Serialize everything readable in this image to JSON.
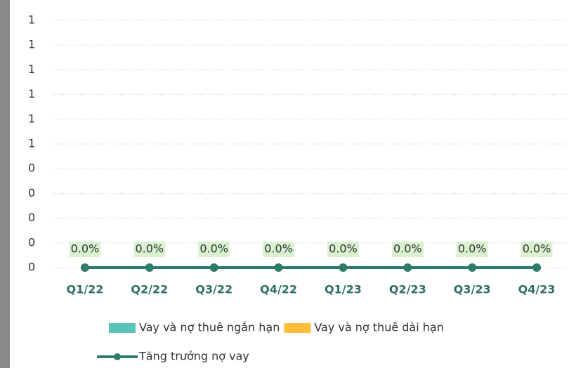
{
  "chart_data": {
    "type": "bar",
    "categories": [
      "Q1/22",
      "Q2/22",
      "Q3/22",
      "Q4/22",
      "Q1/23",
      "Q2/23",
      "Q3/23",
      "Q4/23"
    ],
    "series": [
      {
        "name": "Vay và nợ thuê ngắn hạn",
        "color": "#5cc3b7",
        "values": [
          0,
          0,
          0,
          0,
          0,
          0,
          0,
          0
        ]
      },
      {
        "name": "Vay và nợ thuê dài hạn",
        "color": "#fdbf3a",
        "values": [
          0,
          0,
          0,
          0,
          0,
          0,
          0,
          0
        ]
      },
      {
        "name": "Tăng trưởng nợ vay",
        "type": "line",
        "color": "#2e7b6b",
        "values": [
          0,
          0,
          0,
          0,
          0,
          0,
          0,
          0
        ],
        "value_labels": [
          "0.0%",
          "0.0%",
          "0.0%",
          "0.0%",
          "0.0%",
          "0.0%",
          "0.0%",
          "0.0%"
        ]
      }
    ],
    "ylim": [
      0,
      1
    ],
    "yticks": [
      0,
      {
        "value": 0.1,
        "label": "0"
      },
      {
        "value": 0.2,
        "label": "0"
      },
      {
        "value": 0.3,
        "label": "0"
      },
      {
        "value": 0.4,
        "label": "0"
      },
      {
        "value": 0.5,
        "label": "1"
      },
      {
        "value": 0.6,
        "label": "1"
      },
      {
        "value": 0.7,
        "label": "1"
      },
      {
        "value": 0.8,
        "label": "1"
      },
      {
        "value": 0.9,
        "label": "1"
      },
      1
    ],
    "grid": true
  }
}
